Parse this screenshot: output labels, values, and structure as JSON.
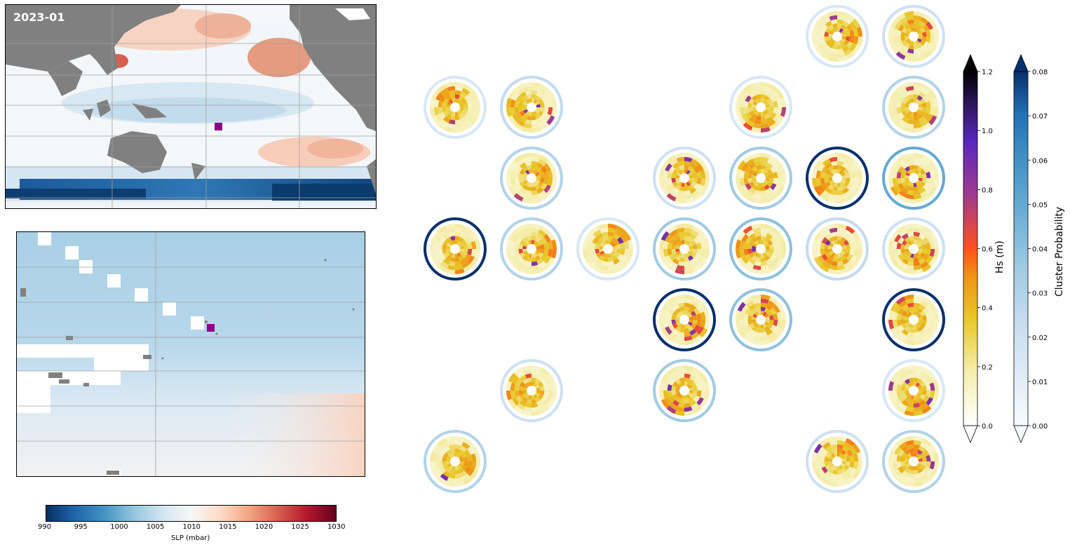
{
  "chart_data": [
    {
      "type": "heatmap",
      "title": "2023-01",
      "description_fields": {
        "variable": "SLP anomaly field",
        "units": "mbar"
      },
      "marker_color": "#8b008b"
    },
    {
      "type": "heatmap",
      "title": "",
      "marker_color": "#8b008b"
    },
    {
      "type": "colorbar",
      "label": "SLP (mbar)",
      "ticks": [
        990,
        995,
        1000,
        1005,
        1010,
        1015,
        1020,
        1025,
        1030
      ],
      "range": [
        990,
        1030
      ],
      "colormap": "RdBu_r"
    },
    {
      "type": "polar-grid",
      "cells": [
        {
          "row": 0,
          "col": 5,
          "prob": 0.015
        },
        {
          "row": 0,
          "col": 6,
          "prob": 0.02
        },
        {
          "row": 1,
          "col": 0,
          "prob": 0.015
        },
        {
          "row": 1,
          "col": 1,
          "prob": 0.025
        },
        {
          "row": 1,
          "col": 4,
          "prob": 0.015
        },
        {
          "row": 1,
          "col": 6,
          "prob": 0.03
        },
        {
          "row": 2,
          "col": 1,
          "prob": 0.03
        },
        {
          "row": 2,
          "col": 3,
          "prob": 0.02
        },
        {
          "row": 2,
          "col": 4,
          "prob": 0.035
        },
        {
          "row": 2,
          "col": 5,
          "prob": 0.08
        },
        {
          "row": 2,
          "col": 6,
          "prob": 0.05
        },
        {
          "row": 3,
          "col": 0,
          "prob": 0.08
        },
        {
          "row": 3,
          "col": 1,
          "prob": 0.03
        },
        {
          "row": 3,
          "col": 2,
          "prob": 0.015
        },
        {
          "row": 3,
          "col": 3,
          "prob": 0.035
        },
        {
          "row": 3,
          "col": 4,
          "prob": 0.04
        },
        {
          "row": 3,
          "col": 5,
          "prob": 0.025
        },
        {
          "row": 3,
          "col": 6,
          "prob": 0.02
        },
        {
          "row": 4,
          "col": 3,
          "prob": 0.08
        },
        {
          "row": 4,
          "col": 4,
          "prob": 0.04
        },
        {
          "row": 4,
          "col": 6,
          "prob": 0.08
        },
        {
          "row": 5,
          "col": 1,
          "prob": 0.02
        },
        {
          "row": 5,
          "col": 3,
          "prob": 0.035
        },
        {
          "row": 5,
          "col": 6,
          "prob": 0.015
        },
        {
          "row": 6,
          "col": 0,
          "prob": 0.03
        },
        {
          "row": 6,
          "col": 5,
          "prob": 0.02
        },
        {
          "row": 6,
          "col": 6,
          "prob": 0.03
        }
      ]
    },
    {
      "type": "colorbar",
      "label": "Hs (m)",
      "ticks": [
        "0.0",
        "0.2",
        "0.4",
        "0.6",
        "0.8",
        "1.0",
        "1.2"
      ],
      "range": [
        0,
        1.2
      ],
      "colormap": "CMRmap_r"
    },
    {
      "type": "colorbar",
      "label": "Cluster Probability",
      "ticks": [
        "0.00",
        "0.01",
        "0.02",
        "0.03",
        "0.04",
        "0.05",
        "0.06",
        "0.07",
        "0.08"
      ],
      "range": [
        0,
        0.08
      ],
      "colormap": "Blues"
    }
  ],
  "colors": {
    "land": "#808080",
    "marker": "#8b008b",
    "ring_low": "#dbe8f5",
    "ring_high": "#08306b"
  }
}
